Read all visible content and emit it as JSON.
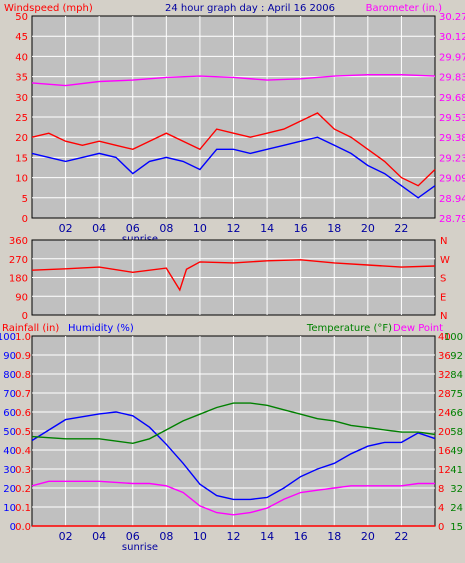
{
  "window": {
    "background": "#d4d0c8"
  },
  "chart_data": [
    {
      "id": "wind-baro",
      "type": "line",
      "title": "24 hour graph day : April 16 2006",
      "left_axis_label": "Windspeed (mph)",
      "right_axis_label": "Barometer (in.)",
      "left_ticks": [
        "50",
        "45",
        "40",
        "35",
        "30",
        "25",
        "20",
        "15",
        "10",
        "5",
        "0"
      ],
      "right_ticks": [
        "30.27",
        "30.12",
        "29.97",
        "29.83",
        "29.68",
        "29.53",
        "29.38",
        "29.23",
        "29.09",
        "28.94",
        "28.79"
      ],
      "left_range": [
        0,
        50
      ],
      "right_range": [
        28.79,
        30.27
      ],
      "x_ticks": [
        "02",
        "04",
        "06",
        "08",
        "10",
        "12",
        "14",
        "16",
        "18",
        "20",
        "22"
      ],
      "x_range": [
        0,
        24
      ],
      "annotations": [
        "sunrise"
      ],
      "series": [
        {
          "color": "#ff00ff",
          "axis": "right",
          "x": [
            0,
            2,
            4,
            6,
            8,
            10,
            12,
            14,
            16,
            18,
            20,
            22,
            24
          ],
          "values": [
            29.78,
            29.76,
            29.79,
            29.8,
            29.82,
            29.83,
            29.82,
            29.8,
            29.81,
            29.83,
            29.84,
            29.84,
            29.83
          ]
        },
        {
          "color": "#ff0000",
          "axis": "left",
          "x": [
            0,
            1,
            2,
            3,
            4,
            5,
            6,
            7,
            8,
            9,
            10,
            11,
            12,
            13,
            14,
            15,
            16,
            17,
            17.5,
            18,
            19,
            20,
            21,
            22,
            23,
            24
          ],
          "values": [
            20,
            21,
            19,
            18,
            19,
            18,
            17,
            19,
            21,
            19,
            17,
            22,
            21,
            20,
            21,
            22,
            24,
            26,
            24,
            22,
            20,
            17,
            14,
            10,
            8,
            12
          ]
        },
        {
          "color": "#0000ff",
          "axis": "left",
          "x": [
            0,
            1,
            2,
            3,
            4,
            5,
            6,
            7,
            8,
            9,
            10,
            11,
            12,
            13,
            14,
            15,
            16,
            17,
            17.5,
            18,
            19,
            20,
            21,
            22,
            23,
            24
          ],
          "values": [
            16,
            15,
            14,
            15,
            16,
            15,
            11,
            14,
            15,
            14,
            12,
            17,
            17,
            16,
            17,
            18,
            19,
            20,
            19,
            18,
            16,
            13,
            11,
            8,
            5,
            8
          ]
        }
      ]
    },
    {
      "id": "wind-direction",
      "type": "line",
      "left_ticks": [
        "360",
        "270",
        "180",
        "90",
        "0"
      ],
      "right_ticks": [
        "N",
        "W",
        "S",
        "E",
        "N"
      ],
      "left_range": [
        0,
        360
      ],
      "x_range": [
        0,
        24
      ],
      "series": [
        {
          "color": "#ff0000",
          "axis": "left",
          "x": [
            0,
            2,
            4,
            6,
            8,
            8.8,
            9.2,
            10,
            12,
            14,
            16,
            18,
            20,
            22,
            24
          ],
          "values": [
            215,
            222,
            230,
            205,
            225,
            120,
            220,
            255,
            250,
            260,
            265,
            250,
            240,
            230,
            235
          ]
        }
      ]
    },
    {
      "id": "rain-humidity-temp",
      "type": "line",
      "left_axis_label_1": "Rainfall (in)",
      "left_axis_label_2": "Humidity (%)",
      "right_axis_label_1": "Temperature (°F)",
      "right_axis_label_2": "Dew Point",
      "humidity_ticks": [
        "100",
        "90",
        "80",
        "70",
        "60",
        "50",
        "40",
        "30",
        "20",
        "10",
        "0"
      ],
      "rain_ticks": [
        "1.0",
        "0.9",
        "0.8",
        "0.7",
        "0.6",
        "0.5",
        "0.4",
        "0.3",
        "0.2",
        "0.1",
        "0.0"
      ],
      "celsius_ticks": [
        "40",
        "36",
        "32",
        "28",
        "24",
        "20",
        "16",
        "12",
        "8",
        "4",
        "0"
      ],
      "fahrenheit_ticks": [
        "100",
        "92",
        "84",
        "75",
        "66",
        "58",
        "49",
        "41",
        "32",
        "24",
        "15"
      ],
      "left_range": [
        0,
        100
      ],
      "right_range": [
        15,
        100
      ],
      "x_ticks": [
        "02",
        "04",
        "06",
        "08",
        "10",
        "12",
        "14",
        "16",
        "18",
        "20",
        "22"
      ],
      "x_range": [
        0,
        24
      ],
      "annotations": [
        "sunrise"
      ],
      "series": [
        {
          "color": "#0000ff",
          "axis": "left",
          "x": [
            0,
            2,
            4,
            5,
            6,
            7,
            8,
            9,
            10,
            11,
            12,
            13,
            14,
            15,
            16,
            17,
            18,
            19,
            20,
            21,
            22,
            23,
            24
          ],
          "values": [
            45,
            56,
            59,
            60,
            58,
            52,
            43,
            33,
            22,
            16,
            14,
            14,
            15,
            20,
            26,
            30,
            33,
            38,
            42,
            44,
            44,
            49,
            46
          ]
        },
        {
          "color": "#008000",
          "axis": "right",
          "x": [
            0,
            2,
            4,
            6,
            7,
            8,
            9,
            10,
            11,
            12,
            13,
            14,
            15,
            16,
            17,
            18,
            19,
            20,
            21,
            22,
            23,
            24
          ],
          "values": [
            55,
            54,
            54,
            52,
            54,
            58,
            62,
            65,
            68,
            70,
            70,
            69,
            67,
            65,
            63,
            62,
            60,
            59,
            58,
            57,
            57,
            56
          ]
        },
        {
          "color": "#ff00ff",
          "axis": "right",
          "x": [
            0,
            1,
            2,
            4,
            6,
            7,
            8,
            9,
            10,
            11,
            12,
            13,
            14,
            15,
            16,
            17,
            18,
            19,
            20,
            21,
            22,
            23,
            24
          ],
          "values": [
            33,
            35,
            35,
            35,
            34,
            34,
            33,
            30,
            24,
            21,
            20,
            21,
            23,
            27,
            30,
            31,
            32,
            33,
            33,
            33,
            33,
            34,
            34
          ]
        },
        {
          "color": "#ff0000",
          "axis": "left",
          "x": [
            0,
            24
          ],
          "values": [
            0,
            0
          ]
        }
      ]
    }
  ]
}
